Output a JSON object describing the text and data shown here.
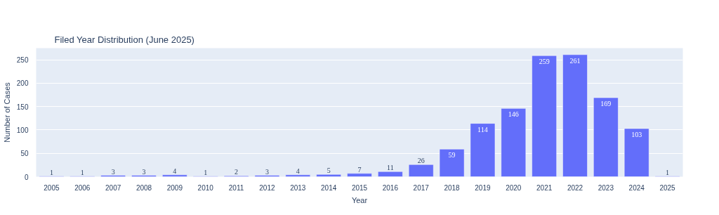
{
  "chart_data": {
    "type": "bar",
    "title": "Filed Year Distribution (June 2025)",
    "xlabel": "Year",
    "ylabel": "Number of Cases",
    "categories": [
      "2005",
      "2006",
      "2007",
      "2008",
      "2009",
      "2010",
      "2011",
      "2012",
      "2013",
      "2014",
      "2015",
      "2016",
      "2017",
      "2018",
      "2019",
      "2020",
      "2021",
      "2022",
      "2023",
      "2024",
      "2025"
    ],
    "values": [
      1,
      1,
      3,
      3,
      4,
      1,
      2,
      3,
      4,
      5,
      7,
      11,
      26,
      59,
      114,
      146,
      259,
      261,
      169,
      103,
      1
    ],
    "color": "#636efa",
    "ylim": [
      0,
      275
    ],
    "yticks": [
      0,
      50,
      100,
      150,
      200,
      250
    ],
    "grid": "y",
    "data_labels": true
  }
}
